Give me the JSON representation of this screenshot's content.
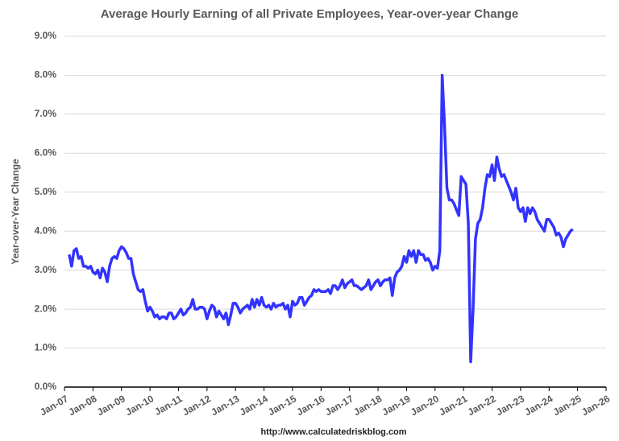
{
  "chart_data": {
    "type": "line",
    "title": "Average Hourly Earning of all Private Employees, Year-over-year Change",
    "y_label": "Year-over-Year Change",
    "source": "http://www.calculatedriskblog.com",
    "x": [
      "2007-03",
      "2007-04",
      "2007-05",
      "2007-06",
      "2007-07",
      "2007-08",
      "2007-09",
      "2007-10",
      "2007-11",
      "2007-12",
      "2008-01",
      "2008-02",
      "2008-03",
      "2008-04",
      "2008-05",
      "2008-06",
      "2008-07",
      "2008-08",
      "2008-09",
      "2008-10",
      "2008-11",
      "2008-12",
      "2009-01",
      "2009-02",
      "2009-03",
      "2009-04",
      "2009-05",
      "2009-06",
      "2009-07",
      "2009-08",
      "2009-09",
      "2009-10",
      "2009-11",
      "2009-12",
      "2010-01",
      "2010-02",
      "2010-03",
      "2010-04",
      "2010-05",
      "2010-06",
      "2010-07",
      "2010-08",
      "2010-09",
      "2010-10",
      "2010-11",
      "2010-12",
      "2011-01",
      "2011-02",
      "2011-03",
      "2011-04",
      "2011-05",
      "2011-06",
      "2011-07",
      "2011-08",
      "2011-09",
      "2011-10",
      "2011-11",
      "2011-12",
      "2012-01",
      "2012-02",
      "2012-03",
      "2012-04",
      "2012-05",
      "2012-06",
      "2012-07",
      "2012-08",
      "2012-09",
      "2012-10",
      "2012-11",
      "2012-12",
      "2013-01",
      "2013-02",
      "2013-03",
      "2013-04",
      "2013-05",
      "2013-06",
      "2013-07",
      "2013-08",
      "2013-09",
      "2013-10",
      "2013-11",
      "2013-12",
      "2014-01",
      "2014-02",
      "2014-03",
      "2014-04",
      "2014-05",
      "2014-06",
      "2014-07",
      "2014-08",
      "2014-09",
      "2014-10",
      "2014-11",
      "2014-12",
      "2015-01",
      "2015-02",
      "2015-03",
      "2015-04",
      "2015-05",
      "2015-06",
      "2015-07",
      "2015-08",
      "2015-09",
      "2015-10",
      "2015-11",
      "2015-12",
      "2016-01",
      "2016-02",
      "2016-03",
      "2016-04",
      "2016-05",
      "2016-06",
      "2016-07",
      "2016-08",
      "2016-09",
      "2016-10",
      "2016-11",
      "2016-12",
      "2017-01",
      "2017-02",
      "2017-03",
      "2017-04",
      "2017-05",
      "2017-06",
      "2017-07",
      "2017-08",
      "2017-09",
      "2017-10",
      "2017-11",
      "2017-12",
      "2018-01",
      "2018-02",
      "2018-03",
      "2018-04",
      "2018-05",
      "2018-06",
      "2018-07",
      "2018-08",
      "2018-09",
      "2018-10",
      "2018-11",
      "2018-12",
      "2019-01",
      "2019-02",
      "2019-03",
      "2019-04",
      "2019-05",
      "2019-06",
      "2019-07",
      "2019-08",
      "2019-09",
      "2019-10",
      "2019-11",
      "2019-12",
      "2020-01",
      "2020-02",
      "2020-03",
      "2020-04",
      "2020-05",
      "2020-06",
      "2020-07",
      "2020-08",
      "2020-09",
      "2020-10",
      "2020-11",
      "2020-12",
      "2021-01",
      "2021-02",
      "2021-03",
      "2021-04",
      "2021-05",
      "2021-06",
      "2021-07",
      "2021-08",
      "2021-09",
      "2021-10",
      "2021-11",
      "2021-12",
      "2022-01",
      "2022-02",
      "2022-03",
      "2022-04",
      "2022-05",
      "2022-06",
      "2022-07",
      "2022-08",
      "2022-09",
      "2022-10",
      "2022-11",
      "2022-12",
      "2023-01",
      "2023-02",
      "2023-03",
      "2023-04",
      "2023-05",
      "2023-06",
      "2023-07",
      "2023-08",
      "2023-09",
      "2023-10",
      "2023-11",
      "2023-12",
      "2024-01",
      "2024-02",
      "2024-03",
      "2024-04",
      "2024-05",
      "2024-06",
      "2024-07",
      "2024-08",
      "2024-09",
      "2024-10",
      "2024-11"
    ],
    "series": [
      {
        "color": "#3333ff",
        "values": [
          3.4,
          3.1,
          3.5,
          3.55,
          3.3,
          3.35,
          3.1,
          3.1,
          3.05,
          3.1,
          2.95,
          2.9,
          3.0,
          2.8,
          3.05,
          2.95,
          2.7,
          3.1,
          3.3,
          3.35,
          3.3,
          3.5,
          3.6,
          3.55,
          3.45,
          3.3,
          3.3,
          2.9,
          2.7,
          2.5,
          2.45,
          2.5,
          2.2,
          1.95,
          2.05,
          1.95,
          1.8,
          1.85,
          1.75,
          1.8,
          1.8,
          1.75,
          1.9,
          1.9,
          1.75,
          1.8,
          1.9,
          2.0,
          1.85,
          1.9,
          2.0,
          2.05,
          2.25,
          2.0,
          2.0,
          2.05,
          2.05,
          2.0,
          1.75,
          1.95,
          2.1,
          2.05,
          1.8,
          1.95,
          1.85,
          1.75,
          1.9,
          1.6,
          1.85,
          2.15,
          2.15,
          2.05,
          1.9,
          2.0,
          2.05,
          2.1,
          2.0,
          2.25,
          2.05,
          2.25,
          2.1,
          2.3,
          2.1,
          2.05,
          2.1,
          2.0,
          2.15,
          2.05,
          2.1,
          2.1,
          2.15,
          2.0,
          2.1,
          1.8,
          2.2,
          2.1,
          2.15,
          2.3,
          2.3,
          2.1,
          2.2,
          2.3,
          2.35,
          2.5,
          2.45,
          2.5,
          2.45,
          2.45,
          2.45,
          2.5,
          2.4,
          2.6,
          2.6,
          2.5,
          2.6,
          2.75,
          2.55,
          2.65,
          2.7,
          2.75,
          2.6,
          2.6,
          2.55,
          2.5,
          2.55,
          2.6,
          2.75,
          2.5,
          2.6,
          2.7,
          2.75,
          2.6,
          2.7,
          2.75,
          2.75,
          2.8,
          2.35,
          2.8,
          2.95,
          3.0,
          3.1,
          3.35,
          3.2,
          3.5,
          3.35,
          3.5,
          3.2,
          3.5,
          3.4,
          3.4,
          3.25,
          3.3,
          3.2,
          3.0,
          3.1,
          3.05,
          3.5,
          8.0,
          6.7,
          5.1,
          4.8,
          4.8,
          4.7,
          4.55,
          4.4,
          5.4,
          5.3,
          5.2,
          4.2,
          0.65,
          2.0,
          3.8,
          4.2,
          4.3,
          4.6,
          5.1,
          5.45,
          5.4,
          5.7,
          5.3,
          5.9,
          5.6,
          5.4,
          5.45,
          5.3,
          5.15,
          5.0,
          4.8,
          5.1,
          4.6,
          4.5,
          4.6,
          4.25,
          4.6,
          4.45,
          4.6,
          4.5,
          4.3,
          4.2,
          4.1,
          4.0,
          4.3,
          4.3,
          4.2,
          4.1,
          3.9,
          3.95,
          3.85,
          3.6,
          3.8,
          3.9,
          4.0,
          4.05
        ]
      }
    ],
    "xlim": [
      "2007-01",
      "2026-01"
    ],
    "xticks": [
      {
        "value": "2007-01",
        "label": "Jan-07"
      },
      {
        "value": "2008-01",
        "label": "Jan-08"
      },
      {
        "value": "2009-01",
        "label": "Jan-09"
      },
      {
        "value": "2010-01",
        "label": "Jan-10"
      },
      {
        "value": "2011-01",
        "label": "Jan-11"
      },
      {
        "value": "2012-01",
        "label": "Jan-12"
      },
      {
        "value": "2013-01",
        "label": "Jan-13"
      },
      {
        "value": "2014-01",
        "label": "Jan-14"
      },
      {
        "value": "2015-01",
        "label": "Jan-15"
      },
      {
        "value": "2016-01",
        "label": "Jan-16"
      },
      {
        "value": "2017-01",
        "label": "Jan-17"
      },
      {
        "value": "2018-01",
        "label": "Jan-18"
      },
      {
        "value": "2019-01",
        "label": "Jan-19"
      },
      {
        "value": "2020-01",
        "label": "Jan-20"
      },
      {
        "value": "2021-01",
        "label": "Jan-21"
      },
      {
        "value": "2022-01",
        "label": "Jan-22"
      },
      {
        "value": "2023-01",
        "label": "Jan-23"
      },
      {
        "value": "2024-01",
        "label": "Jan-24"
      },
      {
        "value": "2025-01",
        "label": "Jan-25"
      },
      {
        "value": "2026-01",
        "label": "Jan-26"
      }
    ],
    "ylim": [
      0,
      9
    ],
    "yticks": [
      {
        "value": 0,
        "label": "0.0%"
      },
      {
        "value": 1,
        "label": "1.0%"
      },
      {
        "value": 2,
        "label": "2.0%"
      },
      {
        "value": 3,
        "label": "3.0%"
      },
      {
        "value": 4,
        "label": "4.0%"
      },
      {
        "value": 5,
        "label": "5.0%"
      },
      {
        "value": 6,
        "label": "6.0%"
      },
      {
        "value": 7,
        "label": "7.0%"
      },
      {
        "value": 8,
        "label": "8.0%"
      },
      {
        "value": 9,
        "label": "9.0%"
      }
    ],
    "grid": true
  }
}
